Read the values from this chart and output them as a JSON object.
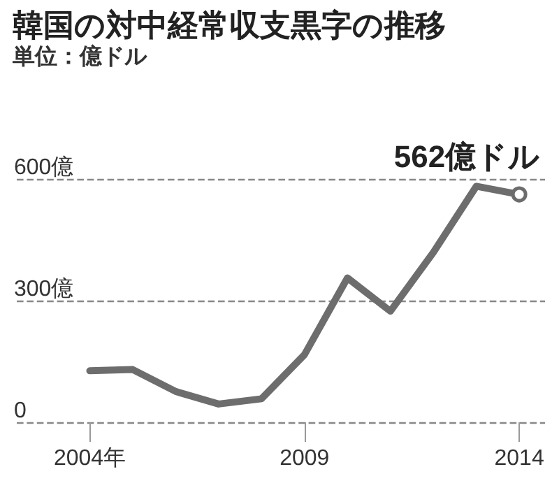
{
  "chart_data": {
    "type": "line",
    "title": "韓国の対中経常収支黒字の推移",
    "subtitle": "単位：億ドル",
    "x": [
      2004,
      2005,
      2006,
      2007,
      2008,
      2009,
      2010,
      2011,
      2012,
      2013,
      2014
    ],
    "series": [
      {
        "color": "#6d6d6d",
        "values": [
          127,
          130,
          76,
          45,
          58,
          167,
          356,
          274,
          419,
          582,
          562
        ]
      }
    ],
    "xlim": [
      2002.3,
      2014.6
    ],
    "xticks": [
      {
        "value": 2004,
        "label": "2004年"
      },
      2009,
      2014
    ],
    "ylim": [
      0,
      600
    ],
    "yticks": [
      {
        "value": 0,
        "label": "0"
      },
      {
        "value": 300,
        "label": "300億"
      },
      {
        "value": 600,
        "label": "600億"
      }
    ],
    "grid": "y",
    "line_style": "solid",
    "annotations": [
      {
        "text": "562億ドル",
        "x": 2014,
        "y": 562
      }
    ]
  }
}
